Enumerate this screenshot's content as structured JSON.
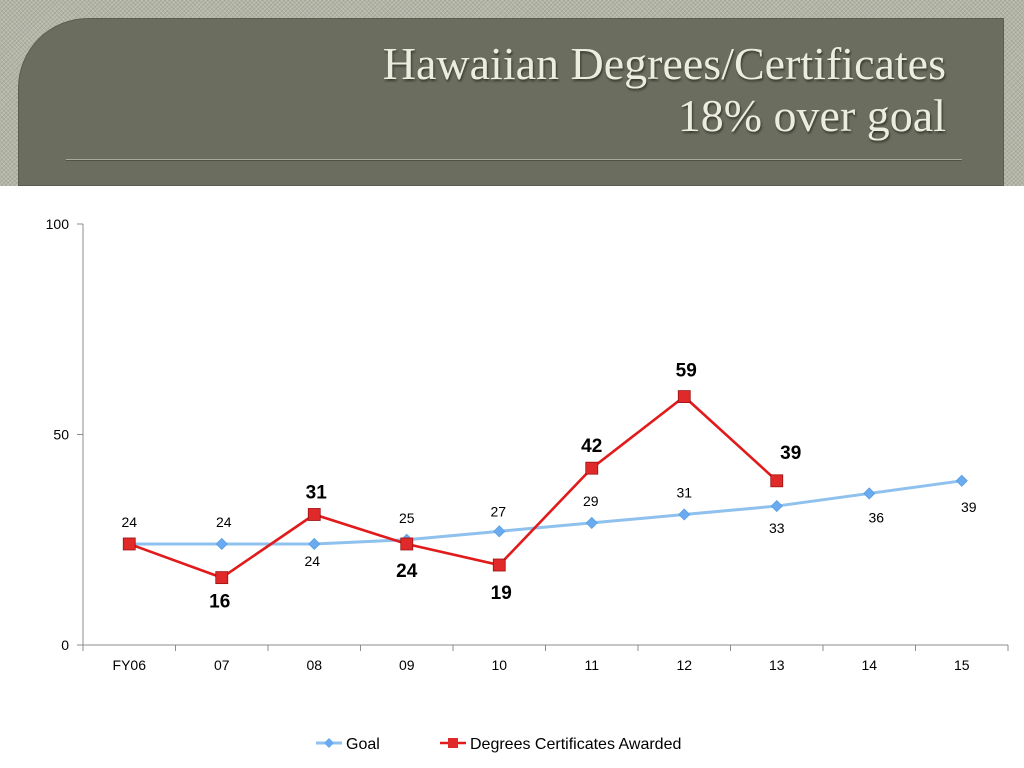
{
  "slide": {
    "title_line1": "Hawaiian Degrees/Certificates",
    "title_line2": "18% over goal"
  },
  "colors": {
    "title_bg": "#6b6e5e",
    "goal": "#8fc1ee",
    "goal_marker": "#6aaaf0",
    "awarded": "#e11b1b",
    "awarded_marker": "#e02a2a"
  },
  "chart_data": {
    "type": "line",
    "categories": [
      "FY06",
      "07",
      "08",
      "09",
      "10",
      "11",
      "12",
      "13",
      "14",
      "15"
    ],
    "ylim": [
      0,
      100
    ],
    "yticks": [
      0,
      50,
      100
    ],
    "legend": "bottom",
    "grid": false,
    "series": [
      {
        "name": "Goal",
        "marker": "diamond",
        "values": [
          24,
          24,
          24,
          25,
          27,
          29,
          31,
          33,
          36,
          39
        ],
        "labels": [
          "24",
          "24",
          "24",
          "25",
          "27",
          "29",
          "31",
          "33",
          "36",
          "39"
        ]
      },
      {
        "name": "Degrees Certificates Awarded",
        "marker": "square",
        "values": [
          24,
          16,
          31,
          24,
          19,
          42,
          59,
          39,
          null,
          null
        ],
        "labels": [
          "",
          "16",
          "31",
          "24",
          "19",
          "42",
          "59",
          "39",
          "",
          ""
        ]
      }
    ]
  }
}
